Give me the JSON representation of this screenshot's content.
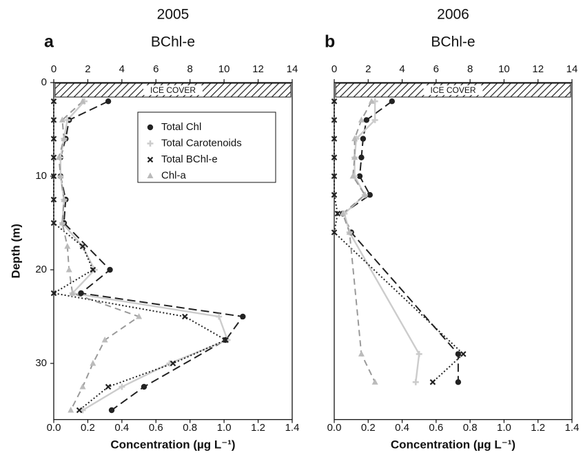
{
  "chart_data": [
    {
      "type": "line",
      "panel_label": "a",
      "title": "2005",
      "top_axis_label": "BChl-e",
      "x_label": "Concentration (µg L⁻¹)",
      "y_label": "Depth (m)",
      "annotation": "ICE COVER",
      "xlim": [
        0,
        1.4
      ],
      "xticks": [
        {
          "value": 0,
          "label": "0.0"
        },
        0.2,
        0.4,
        0.6,
        0.8,
        {
          "value": 1,
          "label": "1.0"
        },
        1.2,
        1.4
      ],
      "x2lim": [
        0,
        14
      ],
      "x2ticks": [
        0,
        2,
        4,
        6,
        8,
        10,
        12,
        14
      ],
      "ylim": [
        0,
        36
      ],
      "yticks": [
        0,
        10,
        20,
        30
      ],
      "y_inverted": true,
      "legend": "upper right",
      "series": [
        {
          "name": "Total Chl",
          "color": "#222222",
          "marker": "circle",
          "dash": "12,6",
          "depth": [
            2,
            4,
            6,
            8,
            10,
            12.5,
            15,
            20,
            22.5,
            25,
            27.5,
            32.5,
            35
          ],
          "values": [
            0.32,
            0.09,
            0.07,
            0.04,
            0.04,
            0.07,
            0.06,
            0.33,
            0.16,
            1.11,
            1.01,
            0.53,
            0.34
          ]
        },
        {
          "name": "Total Carotenoids",
          "color": "#cccccc",
          "marker": "plus",
          "dash": "none",
          "depth": [
            2,
            4,
            6,
            8,
            10,
            12.5,
            15,
            17.5,
            20,
            22.5,
            25,
            27.5,
            30,
            32.5,
            35
          ],
          "values": [
            0.18,
            0.08,
            0.06,
            0.04,
            0.04,
            0.06,
            0.05,
            0.17,
            0.24,
            0.11,
            0.97,
            1.02,
            0.68,
            0.4,
            0.17
          ]
        },
        {
          "name": "Total BChl-e",
          "color": "#222222",
          "marker": "x",
          "dash": "2,3",
          "axis": "x2",
          "depth": [
            2,
            4,
            6,
            8,
            10,
            12.5,
            15,
            17.5,
            20,
            22.5,
            25,
            27.5,
            30,
            32.5,
            35
          ],
          "values": [
            0,
            0,
            0,
            0,
            0,
            0,
            0,
            1.7,
            2.3,
            0,
            7.7,
            10.1,
            7.0,
            3.2,
            1.5
          ]
        },
        {
          "name": "Chl-a",
          "color": "#999999",
          "marker": "triangle",
          "dash": "9,6",
          "depth": [
            2,
            4,
            6,
            8,
            10,
            12.5,
            15,
            17.5,
            20,
            22.5,
            25,
            27.5,
            30,
            32.5,
            35
          ],
          "values": [
            0.17,
            0.05,
            0.06,
            0.03,
            0.04,
            0.06,
            0.05,
            0.08,
            0.09,
            0.11,
            0.5,
            0.3,
            0.23,
            0.17,
            0.1
          ]
        }
      ]
    },
    {
      "type": "line",
      "panel_label": "b",
      "title": "2006",
      "top_axis_label": "BChl-e",
      "x_label": "Concentration (µg L⁻¹)",
      "annotation": "ICE COVER",
      "xlim": [
        0,
        1.4
      ],
      "xticks": [
        {
          "value": 0,
          "label": "0.0"
        },
        0.2,
        0.4,
        0.6,
        0.8,
        {
          "value": 1,
          "label": "1.0"
        },
        1.2,
        1.4
      ],
      "x2lim": [
        0,
        14
      ],
      "x2ticks": [
        0,
        2,
        4,
        6,
        8,
        10,
        12,
        14
      ],
      "ylim": [
        0,
        36
      ],
      "y_inverted": true,
      "series": [
        {
          "color": "#222222",
          "marker": "circle",
          "dash": "12,6",
          "depth": [
            2,
            4,
            6,
            8,
            10,
            12,
            14,
            16,
            29,
            32
          ],
          "values": [
            0.34,
            0.19,
            0.17,
            0.16,
            0.15,
            0.21,
            0.05,
            0.1,
            0.73,
            0.73
          ]
        },
        {
          "color": "#cccccc",
          "marker": "plus",
          "dash": "none",
          "depth": [
            2,
            4,
            6,
            8,
            10,
            12,
            14,
            16,
            29,
            32
          ],
          "values": [
            0.24,
            0.24,
            0.13,
            0.12,
            0.12,
            0.18,
            0.06,
            0.09,
            0.5,
            0.48
          ]
        },
        {
          "color": "#222222",
          "marker": "x",
          "dash": "2,3",
          "axis": "x2",
          "depth": [
            2,
            4,
            6,
            8,
            10,
            12,
            14,
            16,
            29,
            32
          ],
          "values": [
            0,
            0,
            0,
            0,
            0,
            0,
            0.2,
            0,
            7.6,
            5.8
          ]
        },
        {
          "color": "#999999",
          "marker": "triangle",
          "dash": "9,6",
          "depth": [
            2,
            4,
            6,
            8,
            10,
            12,
            14,
            16,
            29,
            32
          ],
          "values": [
            0.22,
            0.16,
            0.12,
            0.12,
            0.11,
            0.18,
            0.05,
            0.09,
            0.16,
            0.24
          ]
        }
      ]
    }
  ]
}
